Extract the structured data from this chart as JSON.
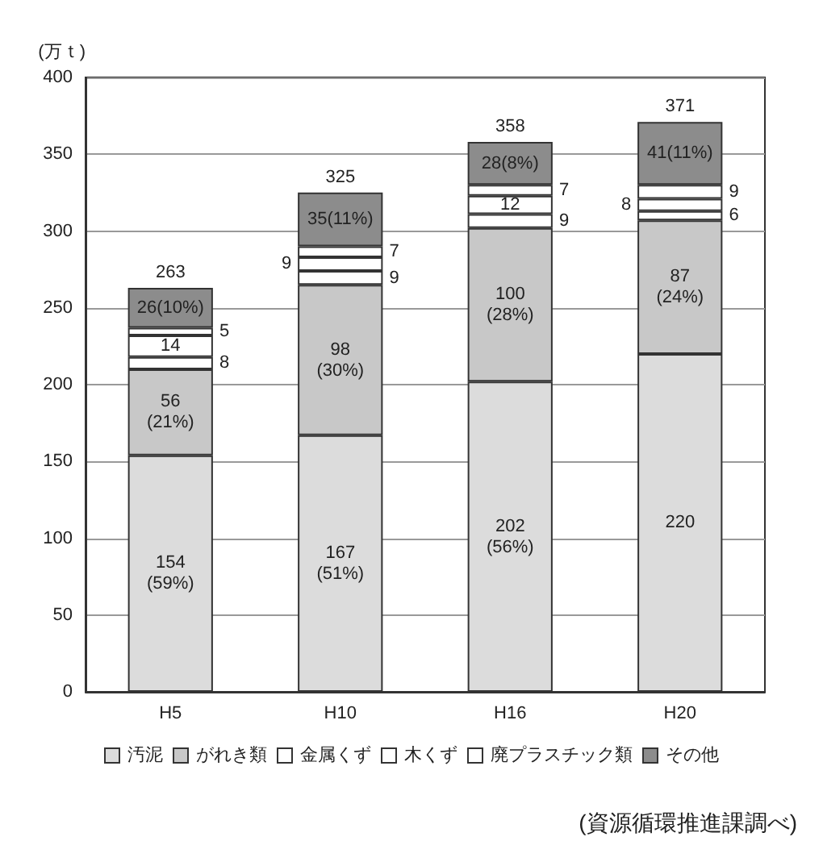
{
  "chart_data": {
    "type": "bar",
    "stacked": true,
    "ylabel": "(万ｔ)",
    "categories": [
      "H5",
      "H10",
      "H16",
      "H20"
    ],
    "series": [
      {
        "name": "汚泥",
        "color": "#dcdcdc",
        "values": [
          154,
          167,
          202,
          220
        ],
        "value_labels": [
          "154\n(59%)",
          "167\n(51%)",
          "202\n(56%)",
          "220"
        ]
      },
      {
        "name": "がれき類",
        "color": "#c8c8c8",
        "values": [
          56,
          98,
          100,
          87
        ],
        "value_labels": [
          "56\n(21%)",
          "98\n(30%)",
          "100\n(28%)",
          "87\n(24%)"
        ]
      },
      {
        "name": "金属くず",
        "color": "#ffffff",
        "values": [
          8,
          9,
          9,
          6
        ],
        "value_labels": [
          "8",
          "9",
          "9",
          "6"
        ]
      },
      {
        "name": "木くず",
        "color": "#ffffff",
        "values": [
          14,
          9,
          12,
          8
        ],
        "value_labels": [
          "14",
          "9",
          "12",
          "8"
        ]
      },
      {
        "name": "廃プラスチック類",
        "color": "#ffffff",
        "values": [
          5,
          7,
          7,
          9
        ],
        "value_labels": [
          "5",
          "7",
          "7",
          "9"
        ]
      },
      {
        "name": "その他",
        "color": "#8c8c8c",
        "values": [
          26,
          35,
          28,
          41
        ],
        "value_labels": [
          "26(10%)",
          "35(11%)",
          "28(8%)",
          "41(11%)"
        ]
      }
    ],
    "totals": [
      "263",
      "325",
      "358",
      "371"
    ],
    "ylim": [
      0,
      400
    ],
    "yticks": [
      0,
      50,
      100,
      150,
      200,
      250,
      300,
      350,
      400
    ],
    "grid": "y",
    "legend": "bottom",
    "annotations": [
      "(資源循環推進課調べ)"
    ]
  }
}
